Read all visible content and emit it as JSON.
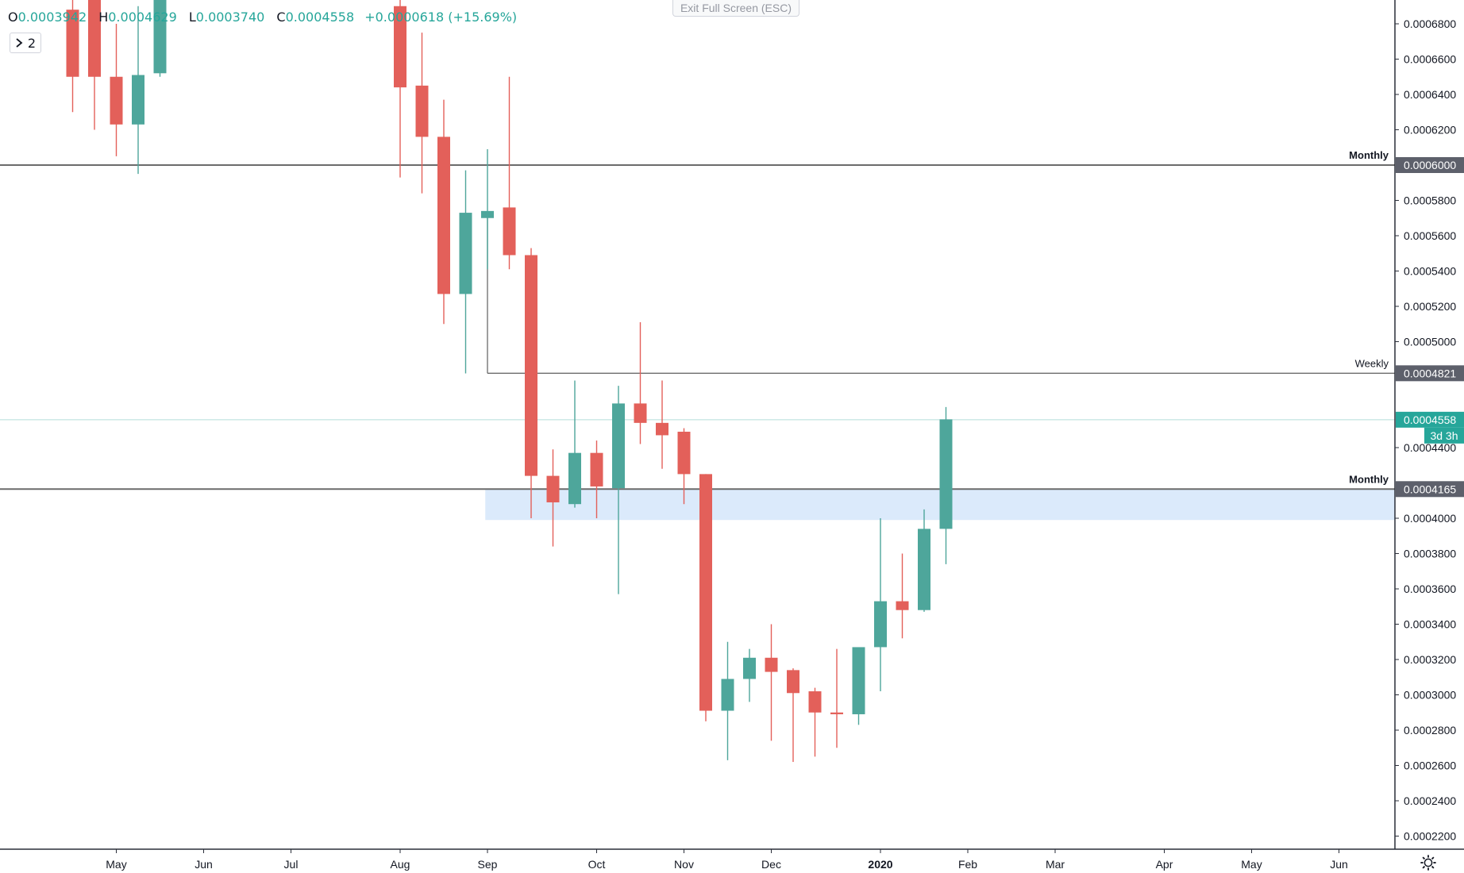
{
  "legend": {
    "o_key": "O",
    "o_val": "0.0003942",
    "h_key": "H",
    "h_val": "0.0004629",
    "l_key": "L",
    "l_val": "0.0003740",
    "c_key": "C",
    "c_val": "0.0004558",
    "change": "+0.0000618 (+15.69%)"
  },
  "collapse_button": {
    "label": "2"
  },
  "exit_fullscreen": "Exit Full Screen (ESC)",
  "colors": {
    "up": "#4ea69b",
    "down": "#e3605a",
    "zone": "#dbeafb",
    "level": "#6b6b6b",
    "price": "#26a69a"
  },
  "icons": {
    "collapse": "chevron-right-icon",
    "settings": "gear-icon"
  },
  "chart_data": {
    "type": "candlestick",
    "timeframe": "weekly",
    "yaxis": {
      "min": 0.00021,
      "max": 0.00069,
      "ticks": [
        "0.0006800",
        "0.0006600",
        "0.0006400",
        "0.0006200",
        "0.0005800",
        "0.0005600",
        "0.0005400",
        "0.0005200",
        "0.0005000",
        "0.0004400",
        "0.0004000",
        "0.0003800",
        "0.0003600",
        "0.0003400",
        "0.0003200",
        "0.0003000",
        "0.0002800",
        "0.0002600",
        "0.0002400",
        "0.0002200"
      ]
    },
    "xaxis": {
      "labels": [
        {
          "text": "May",
          "x": 1
        },
        {
          "text": "Jun",
          "x": 5
        },
        {
          "text": "Jul",
          "x": 9
        },
        {
          "text": "Aug",
          "x": 14
        },
        {
          "text": "Sep",
          "x": 18
        },
        {
          "text": "Oct",
          "x": 23
        },
        {
          "text": "Nov",
          "x": 27
        },
        {
          "text": "Dec",
          "x": 31
        },
        {
          "text": "2020",
          "x": 36
        },
        {
          "text": "Feb",
          "x": 40
        },
        {
          "text": "Mar",
          "x": 44
        },
        {
          "text": "Apr",
          "x": 49
        },
        {
          "text": "May",
          "x": 53
        },
        {
          "text": "Jun",
          "x": 57
        }
      ]
    },
    "candles": [
      {
        "x": -1,
        "o": 0.000688,
        "h": 0.000696,
        "l": 0.00063,
        "c": 0.00065
      },
      {
        "x": 0,
        "o": 0.000705,
        "h": 0.00072,
        "l": 0.00062,
        "c": 0.00065
      },
      {
        "x": 1,
        "o": 0.00065,
        "h": 0.00068,
        "l": 0.000605,
        "c": 0.000623
      },
      {
        "x": 2,
        "o": 0.000623,
        "h": 0.00069,
        "l": 0.000595,
        "c": 0.000651
      },
      {
        "x": 3,
        "o": 0.000652,
        "h": 0.0007,
        "l": 0.00065,
        "c": 0.000695
      },
      {
        "x": 14,
        "o": 0.00069,
        "h": 0.000705,
        "l": 0.000593,
        "c": 0.000644
      },
      {
        "x": 15,
        "o": 0.000645,
        "h": 0.000675,
        "l": 0.000584,
        "c": 0.000616
      },
      {
        "x": 16,
        "o": 0.000616,
        "h": 0.000637,
        "l": 0.00051,
        "c": 0.000527
      },
      {
        "x": 17,
        "o": 0.000527,
        "h": 0.000597,
        "l": 0.000482,
        "c": 0.000573
      },
      {
        "x": 18,
        "o": 0.00057,
        "h": 0.000609,
        "l": 0.000541,
        "c": 0.000574
      },
      {
        "x": 19,
        "o": 0.000576,
        "h": 0.00065,
        "l": 0.000541,
        "c": 0.000549
      },
      {
        "x": 20,
        "o": 0.000549,
        "h": 0.000553,
        "l": 0.0004,
        "c": 0.000424
      },
      {
        "x": 21,
        "o": 0.000424,
        "h": 0.000439,
        "l": 0.000384,
        "c": 0.000409
      },
      {
        "x": 22,
        "o": 0.000408,
        "h": 0.000478,
        "l": 0.000406,
        "c": 0.000437
      },
      {
        "x": 23,
        "o": 0.000437,
        "h": 0.000444,
        "l": 0.0004,
        "c": 0.000418
      },
      {
        "x": 24,
        "o": 0.000417,
        "h": 0.000475,
        "l": 0.000357,
        "c": 0.000465
      },
      {
        "x": 25,
        "o": 0.000465,
        "h": 0.000511,
        "l": 0.000442,
        "c": 0.000454
      },
      {
        "x": 26,
        "o": 0.000454,
        "h": 0.000478,
        "l": 0.000428,
        "c": 0.000447
      },
      {
        "x": 27,
        "o": 0.000449,
        "h": 0.000451,
        "l": 0.000408,
        "c": 0.000425
      },
      {
        "x": 28,
        "o": 0.000425,
        "h": 0.000425,
        "l": 0.000285,
        "c": 0.000291
      },
      {
        "x": 29,
        "o": 0.000291,
        "h": 0.00033,
        "l": 0.000263,
        "c": 0.000309
      },
      {
        "x": 30,
        "o": 0.000309,
        "h": 0.000326,
        "l": 0.000296,
        "c": 0.000321
      },
      {
        "x": 31,
        "o": 0.000321,
        "h": 0.00034,
        "l": 0.000274,
        "c": 0.000313
      },
      {
        "x": 32,
        "o": 0.000314,
        "h": 0.000315,
        "l": 0.000262,
        "c": 0.000301
      },
      {
        "x": 33,
        "o": 0.000302,
        "h": 0.000304,
        "l": 0.000265,
        "c": 0.00029
      },
      {
        "x": 34,
        "o": 0.00029,
        "h": 0.000326,
        "l": 0.00027,
        "c": 0.000289
      },
      {
        "x": 35,
        "o": 0.000289,
        "h": 0.000326,
        "l": 0.000283,
        "c": 0.000327
      },
      {
        "x": 36,
        "o": 0.000327,
        "h": 0.0004,
        "l": 0.000302,
        "c": 0.000353
      },
      {
        "x": 37,
        "o": 0.000353,
        "h": 0.00038,
        "l": 0.000332,
        "c": 0.000348
      },
      {
        "x": 38,
        "o": 0.000348,
        "h": 0.000405,
        "l": 0.000347,
        "c": 0.000394
      },
      {
        "x": 39,
        "o": 0.000394,
        "h": 0.000463,
        "l": 0.000374,
        "c": 0.000456
      }
    ],
    "levels": [
      {
        "label": "Monthly",
        "price": 0.0006,
        "price_label": "0.0006000"
      },
      {
        "label": "Weekly",
        "price": 0.0004821,
        "price_label": "0.0004821",
        "from_x": 18
      },
      {
        "label": "Monthly",
        "price": 0.0004165,
        "price_label": "0.0004165"
      }
    ],
    "zone": {
      "from": 0.000399,
      "to": 0.0004165,
      "from_x": 17.9
    },
    "current_price": {
      "value": 0.0004558,
      "label": "0.0004558",
      "countdown": "3d 3h"
    }
  }
}
